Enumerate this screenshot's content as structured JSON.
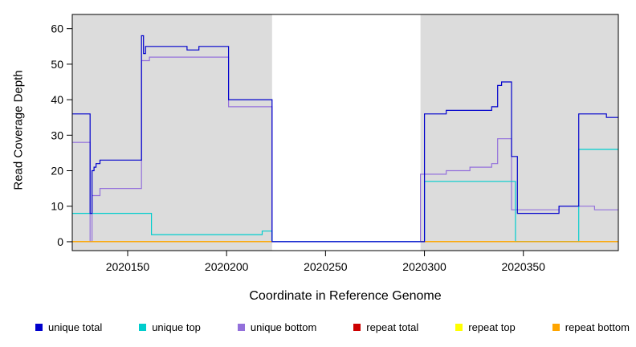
{
  "figure": {
    "background": "#FFFFFF",
    "panel_shading_color": "#DCDCDC",
    "axis_color": "#000000"
  },
  "chart_data": {
    "type": "line",
    "subtype": "step-coverage-plot",
    "title": "",
    "xlabel": "Coordinate in Reference Genome",
    "ylabel": "Read Coverage Depth",
    "xlim": [
      2020122,
      2020398
    ],
    "ylim": [
      0,
      60
    ],
    "y_axis_range": [
      -2.5,
      64
    ],
    "x_ticks": [
      2020150,
      2020200,
      2020250,
      2020300,
      2020350
    ],
    "y_ticks": [
      0,
      10,
      20,
      30,
      40,
      50,
      60
    ],
    "grid": false,
    "legend_position": "bottom",
    "shaded_regions": [
      [
        2020122,
        2020223
      ],
      [
        2020298,
        2020398
      ]
    ],
    "series": [
      {
        "name": "unique total",
        "color": "#0000CD",
        "segments": [
          [
            [
              2020122,
              36
            ],
            [
              2020131,
              8
            ],
            [
              2020132,
              20
            ],
            [
              2020133,
              21
            ],
            [
              2020134,
              22
            ],
            [
              2020136,
              23
            ],
            [
              2020157,
              58
            ],
            [
              2020158,
              53
            ],
            [
              2020159,
              55
            ],
            [
              2020180,
              54
            ],
            [
              2020186,
              55
            ],
            [
              2020201,
              40
            ],
            [
              2020223,
              0
            ],
            [
              2020300,
              36
            ],
            [
              2020311,
              37
            ],
            [
              2020334,
              38
            ],
            [
              2020337,
              44
            ],
            [
              2020339,
              45
            ],
            [
              2020344,
              24
            ],
            [
              2020347,
              8
            ],
            [
              2020368,
              10
            ],
            [
              2020378,
              36
            ],
            [
              2020392,
              35
            ],
            [
              2020398,
              35
            ]
          ]
        ]
      },
      {
        "name": "unique top",
        "color": "#00CDCD",
        "segments": [
          [
            [
              2020122,
              8
            ],
            [
              2020162,
              2
            ],
            [
              2020218,
              3
            ],
            [
              2020223,
              0
            ],
            [
              2020300,
              17
            ],
            [
              2020346,
              0
            ],
            [
              2020378,
              26
            ],
            [
              2020398,
              26
            ]
          ]
        ]
      },
      {
        "name": "unique bottom",
        "color": "#9370DB",
        "segments": [
          [
            [
              2020122,
              28
            ],
            [
              2020131,
              0
            ],
            [
              2020132,
              13
            ],
            [
              2020136,
              15
            ],
            [
              2020157,
              51
            ],
            [
              2020161,
              52
            ],
            [
              2020201,
              38
            ],
            [
              2020223,
              0
            ],
            [
              2020298,
              19
            ],
            [
              2020311,
              20
            ],
            [
              2020323,
              21
            ],
            [
              2020334,
              22
            ],
            [
              2020337,
              29
            ],
            [
              2020344,
              9
            ],
            [
              2020368,
              10
            ],
            [
              2020386,
              9
            ],
            [
              2020398,
              9
            ]
          ]
        ]
      },
      {
        "name": "repeat total",
        "color": "#CD0000",
        "segments": [
          [
            [
              2020122,
              0
            ],
            [
              2020223,
              0
            ]
          ],
          [
            [
              2020298,
              0
            ],
            [
              2020398,
              0
            ]
          ]
        ]
      },
      {
        "name": "repeat top",
        "color": "#FFFF00",
        "segments": [
          [
            [
              2020122,
              0
            ],
            [
              2020223,
              0
            ]
          ],
          [
            [
              2020298,
              0
            ],
            [
              2020398,
              0
            ]
          ]
        ]
      },
      {
        "name": "repeat bottom",
        "color": "#FFA500",
        "segments": [
          [
            [
              2020122,
              0
            ],
            [
              2020223,
              0
            ]
          ],
          [
            [
              2020298,
              0
            ],
            [
              2020398,
              0
            ]
          ]
        ]
      }
    ],
    "draw_order": [
      "repeat total",
      "repeat top",
      "unique bottom",
      "unique top",
      "repeat bottom",
      "unique total"
    ],
    "legend": [
      "unique total",
      "unique top",
      "unique bottom",
      "repeat total",
      "repeat top",
      "repeat bottom"
    ]
  }
}
